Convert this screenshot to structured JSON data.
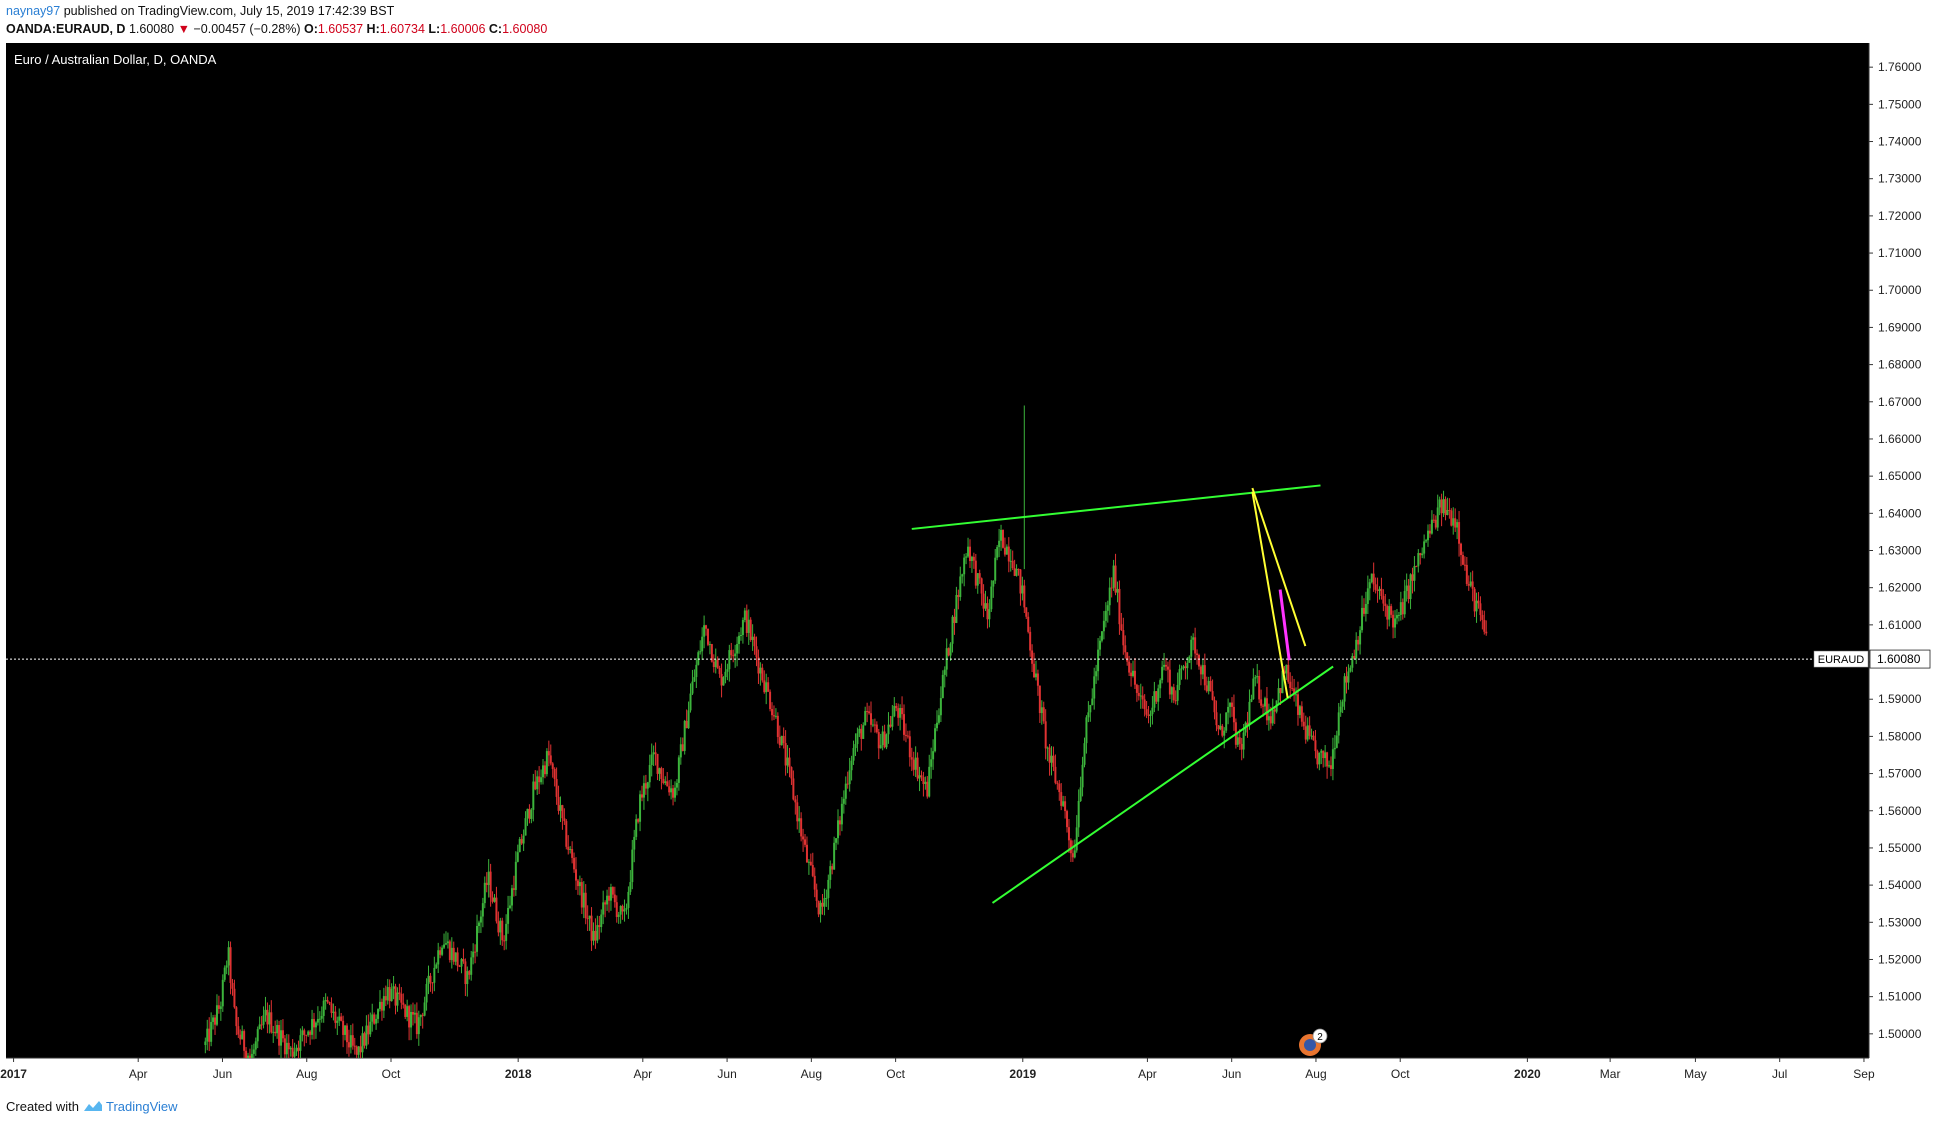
{
  "header": {
    "username": "naynay97",
    "published_text": "published on TradingView.com, July 15, 2019 17:42:39 BST",
    "symbol": "OANDA:EURAUD, D",
    "last": "1.60080",
    "change": "−0.00457 (−0.28%)",
    "open_label": "O:",
    "open": "1.60537",
    "high_label": "H:",
    "high": "1.60734",
    "low_label": "L:",
    "low": "1.60006",
    "close_label": "C:",
    "close": "1.60080"
  },
  "footer": {
    "created_with": "Created with",
    "brand": "TradingView"
  },
  "badge_count": "2",
  "colors": {
    "background": "#000000",
    "candle_up": "#3cb43c",
    "candle_down": "#e03232",
    "trendline": "#33ff33",
    "wedge_line": "#ffff33",
    "projection": "#ff33ff",
    "price_line": "#ffffff"
  },
  "chart_data": {
    "type": "candlestick",
    "title": "Euro / Australian Dollar, D, OANDA",
    "price_label": "EURAUD",
    "current_price": 1.6008,
    "ylim": [
      1.4935,
      1.7665
    ],
    "y_ticks": [
      "1.50000",
      "1.51000",
      "1.52000",
      "1.53000",
      "1.54000",
      "1.55000",
      "1.56000",
      "1.57000",
      "1.58000",
      "1.59000",
      "1.60000",
      "1.61000",
      "1.62000",
      "1.63000",
      "1.64000",
      "1.65000",
      "1.66000",
      "1.67000",
      "1.68000",
      "1.69000",
      "1.70000",
      "1.71000",
      "1.72000",
      "1.73000",
      "1.74000",
      "1.75000",
      "1.76000"
    ],
    "x_ticks": [
      {
        "label": "2017",
        "t": 2017.0
      },
      {
        "label": "Apr",
        "t": 2017.247
      },
      {
        "label": "Jun",
        "t": 2017.414
      },
      {
        "label": "Aug",
        "t": 2017.581
      },
      {
        "label": "Oct",
        "t": 2017.748
      },
      {
        "label": "2018",
        "t": 2018.0
      },
      {
        "label": "Apr",
        "t": 2018.247
      },
      {
        "label": "Jun",
        "t": 2018.414
      },
      {
        "label": "Aug",
        "t": 2018.581
      },
      {
        "label": "Oct",
        "t": 2018.748
      },
      {
        "label": "2019",
        "t": 2019.0
      },
      {
        "label": "Apr",
        "t": 2019.247
      },
      {
        "label": "Jun",
        "t": 2019.414
      },
      {
        "label": "Aug",
        "t": 2019.581
      },
      {
        "label": "Oct",
        "t": 2019.748
      },
      {
        "label": "2020",
        "t": 2020.0
      },
      {
        "label": "Mar",
        "t": 2020.164
      },
      {
        "label": "May",
        "t": 2020.333
      },
      {
        "label": "Jul",
        "t": 2020.5
      },
      {
        "label": "Sep",
        "t": 2020.667
      }
    ],
    "xlim": [
      2016.985,
      2020.677
    ],
    "price_path": [
      [
        2017.38,
        1.497
      ],
      [
        2017.41,
        1.508
      ],
      [
        2017.425,
        1.522
      ],
      [
        2017.44,
        1.502
      ],
      [
        2017.47,
        1.493
      ],
      [
        2017.5,
        1.505
      ],
      [
        2017.55,
        1.495
      ],
      [
        2017.62,
        1.508
      ],
      [
        2017.68,
        1.494
      ],
      [
        2017.74,
        1.512
      ],
      [
        2017.8,
        1.502
      ],
      [
        2017.85,
        1.526
      ],
      [
        2017.9,
        1.515
      ],
      [
        2017.94,
        1.542
      ],
      [
        2017.97,
        1.525
      ],
      [
        2018.0,
        1.548
      ],
      [
        2018.03,
        1.565
      ],
      [
        2018.06,
        1.575
      ],
      [
        2018.09,
        1.555
      ],
      [
        2018.12,
        1.54
      ],
      [
        2018.15,
        1.525
      ],
      [
        2018.18,
        1.538
      ],
      [
        2018.21,
        1.53
      ],
      [
        2018.24,
        1.562
      ],
      [
        2018.27,
        1.575
      ],
      [
        2018.29,
        1.568
      ],
      [
        2018.31,
        1.565
      ],
      [
        2018.34,
        1.59
      ],
      [
        2018.37,
        1.61
      ],
      [
        2018.4,
        1.595
      ],
      [
        2018.43,
        1.605
      ],
      [
        2018.45,
        1.612
      ],
      [
        2018.48,
        1.598
      ],
      [
        2018.51,
        1.585
      ],
      [
        2018.54,
        1.568
      ],
      [
        2018.57,
        1.548
      ],
      [
        2018.6,
        1.532
      ],
      [
        2018.63,
        1.552
      ],
      [
        2018.66,
        1.575
      ],
      [
        2018.69,
        1.585
      ],
      [
        2018.72,
        1.578
      ],
      [
        2018.75,
        1.588
      ],
      [
        2018.78,
        1.575
      ],
      [
        2018.81,
        1.565
      ],
      [
        2018.83,
        1.585
      ],
      [
        2018.86,
        1.61
      ],
      [
        2018.89,
        1.632
      ],
      [
        2018.91,
        1.622
      ],
      [
        2018.93,
        1.612
      ],
      [
        2018.955,
        1.634
      ],
      [
        2018.98,
        1.628
      ],
      [
        2019.0,
        1.618
      ],
      [
        2019.02,
        1.6
      ],
      [
        2019.05,
        1.575
      ],
      [
        2019.08,
        1.562
      ],
      [
        2019.1,
        1.547
      ],
      [
        2019.12,
        1.577
      ],
      [
        2019.15,
        1.602
      ],
      [
        2019.18,
        1.624
      ],
      [
        2019.2,
        1.605
      ],
      [
        2019.23,
        1.59
      ],
      [
        2019.25,
        1.585
      ],
      [
        2019.28,
        1.6
      ],
      [
        2019.3,
        1.59
      ],
      [
        2019.32,
        1.6
      ],
      [
        2019.34,
        1.605
      ],
      [
        2019.37,
        1.592
      ],
      [
        2019.39,
        1.58
      ],
      [
        2019.41,
        1.588
      ],
      [
        2019.43,
        1.575
      ],
      [
        2019.46,
        1.595
      ],
      [
        2019.49,
        1.585
      ],
      [
        2019.52,
        1.598
      ],
      [
        2019.55,
        1.585
      ],
      [
        2019.58,
        1.575
      ],
      [
        2019.61,
        1.572
      ],
      [
        2019.63,
        1.59
      ],
      [
        2019.66,
        1.605
      ],
      [
        2019.69,
        1.622
      ],
      [
        2019.71,
        1.617
      ],
      [
        2019.74,
        1.61
      ],
      [
        2019.77,
        1.622
      ],
      [
        2019.8,
        1.633
      ],
      [
        2019.83,
        1.642
      ],
      [
        2019.86,
        1.638
      ],
      [
        2019.88,
        1.622
      ],
      [
        2019.9,
        1.615
      ],
      [
        2019.92,
        1.605
      ]
    ],
    "annotations": {
      "upper_trendline": [
        [
          2018.78,
          1.6358
        ],
        [
          2019.59,
          1.6475
        ]
      ],
      "lower_trendline": [
        [
          2018.94,
          1.5352
        ],
        [
          2019.615,
          1.5988
        ]
      ],
      "wedge_upper": [
        [
          2019.455,
          1.6468
        ],
        [
          2019.56,
          1.6043
        ]
      ],
      "wedge_lower": [
        [
          2019.455,
          1.6458
        ],
        [
          2019.525,
          1.5903
        ]
      ],
      "projection": [
        [
          2019.51,
          1.6195
        ],
        [
          2019.528,
          1.6005
        ]
      ]
    }
  }
}
